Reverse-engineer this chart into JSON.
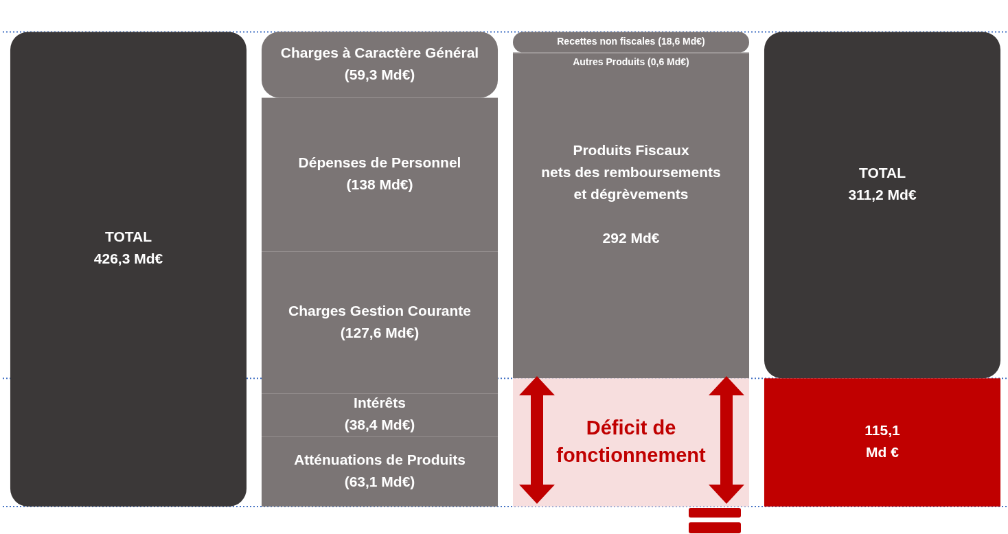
{
  "chart_data": {
    "type": "bar",
    "stacked": true,
    "categories": [
      null,
      null,
      null,
      null
    ],
    "series": [
      {
        "values": [
          426.3,
          63.1,
          115.1,
          115.1
        ],
        "colors": [
          "#3b3838",
          "#7b7575",
          "#f7dede",
          "#c00000"
        ],
        "value_labels": [
          "TOTAL\n426,3 Md€",
          "Atténuations de Produits\n(63,1 Md€)",
          "Déficit de\nfonctionnement",
          "115,1\nMd €"
        ]
      },
      {
        "values": [
          null,
          38.4,
          292,
          311.2
        ],
        "colors": [
          null,
          "#7b7575",
          "#7b7575",
          "#3b3838"
        ],
        "value_labels": [
          null,
          "Intérêts\n(38,4 Md€)",
          "Produits Fiscaux\nnets des remboursements\net dégrèvements\n\n292 Md€",
          "TOTAL\n311,2 Md€"
        ]
      },
      {
        "values": [
          null,
          127.6,
          0.6,
          null
        ],
        "colors": [
          null,
          "#7b7575",
          "#7b7575",
          null
        ],
        "value_labels": [
          null,
          "Charges Gestion Courante\n(127,6 Md€)",
          "Autres Produits (0,6 Md€)",
          null
        ]
      },
      {
        "values": [
          null,
          138,
          18.6,
          null
        ],
        "colors": [
          null,
          "#7b7575",
          "#7b7575",
          null
        ],
        "value_labels": [
          null,
          "Dépenses de Personnel\n(138 Md€)",
          "Recettes non fiscales (18,6 Md€)",
          null
        ]
      },
      {
        "values": [
          null,
          59.3,
          null,
          null
        ],
        "colors": [
          null,
          "#7b7575",
          null,
          null
        ],
        "value_labels": [
          null,
          "Charges à Caractère Général\n(59,3 Md€)",
          null,
          null
        ]
      }
    ],
    "ref_lines": [
      {
        "axis": "y",
        "value": 426.3,
        "color": "#4472c4",
        "line_style": "dotted"
      },
      {
        "axis": "y",
        "value": 115.1,
        "color": "#4472c4",
        "line_style": "dotted"
      },
      {
        "axis": "y",
        "value": 0,
        "color": "#4472c4",
        "line_style": "dotted"
      }
    ]
  }
}
